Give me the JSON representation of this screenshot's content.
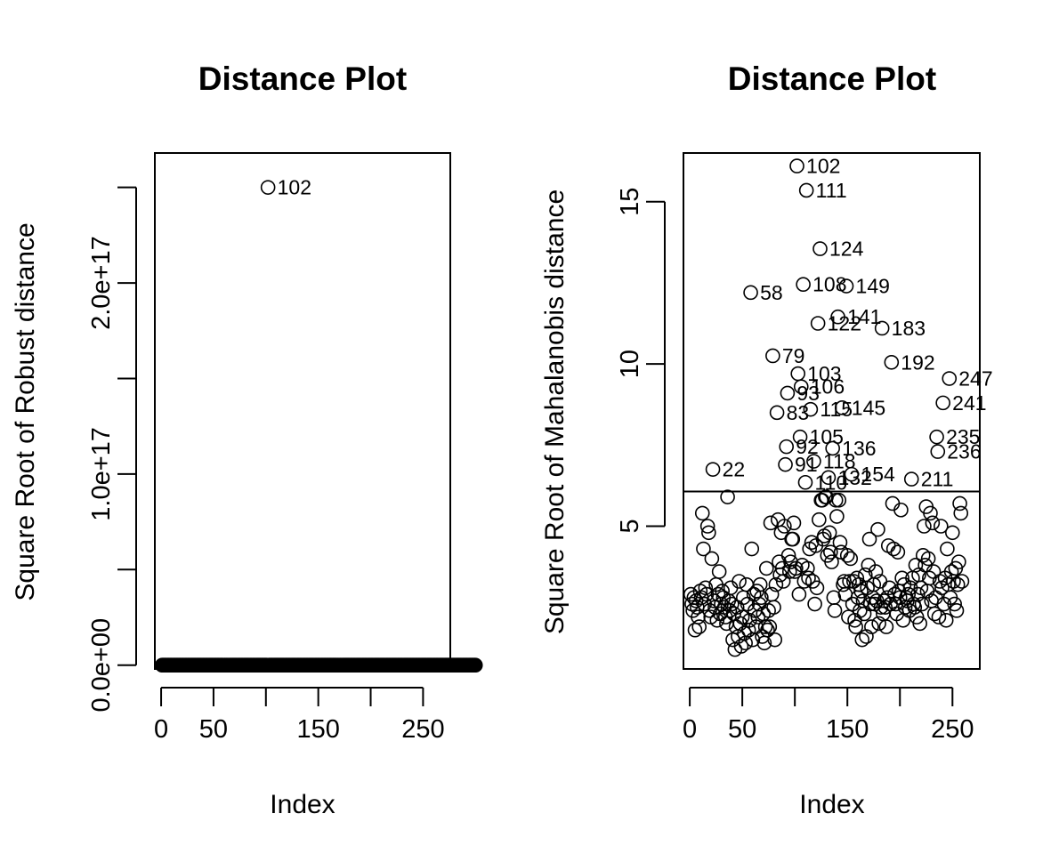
{
  "chart_data": [
    {
      "type": "scatter",
      "title": "Distance Plot",
      "xlabel": "Index",
      "ylabel": "Square Root of Robust distance",
      "xlim": [
        -6,
        276
      ],
      "ylim": [
        -2000000000000000.0,
        2.68e+17
      ],
      "x_ticks": [
        0,
        50,
        100,
        150,
        200,
        250
      ],
      "x_tick_labels": [
        "0",
        "50",
        "",
        "150",
        "",
        "250"
      ],
      "y_ticks": [
        0,
        5e+16,
        1e+17,
        1.5e+17,
        2e+17,
        2.5e+17
      ],
      "y_tick_labels": [
        "0.0e+00",
        "",
        "1.0e+17",
        "",
        "2.0e+17",
        ""
      ],
      "grid": false,
      "outlier_labels": [
        {
          "x": 102,
          "y": 2.5e+17,
          "label": "102"
        }
      ],
      "note": "all points except 102 lie at approximately 0, x from 1 to 300"
    },
    {
      "type": "scatter",
      "title": "Distance Plot",
      "xlabel": "Index",
      "ylabel": "Square Root of Mahalanobis distance",
      "xlim": [
        -6,
        276
      ],
      "ylim": [
        0.6,
        16.5
      ],
      "x_ticks": [
        0,
        50,
        100,
        150,
        200,
        250
      ],
      "x_tick_labels": [
        "0",
        "50",
        "",
        "150",
        "",
        "250"
      ],
      "y_ticks": [
        5,
        10,
        15
      ],
      "y_tick_labels": [
        "5",
        "10",
        "15"
      ],
      "cutoff": 6.07,
      "grid": false,
      "labeled_points": [
        {
          "x": 102,
          "y": 16.1,
          "label": "102"
        },
        {
          "x": 111,
          "y": 15.35,
          "label": "111"
        },
        {
          "x": 124,
          "y": 13.55,
          "label": "124"
        },
        {
          "x": 108,
          "y": 12.45,
          "label": "108"
        },
        {
          "x": 149,
          "y": 12.4,
          "label": "149"
        },
        {
          "x": 58,
          "y": 12.2,
          "label": "58"
        },
        {
          "x": 141,
          "y": 11.45,
          "label": "141"
        },
        {
          "x": 122,
          "y": 11.25,
          "label": "122"
        },
        {
          "x": 183,
          "y": 11.1,
          "label": "183"
        },
        {
          "x": 79,
          "y": 10.25,
          "label": "79"
        },
        {
          "x": 192,
          "y": 10.05,
          "label": "192"
        },
        {
          "x": 103,
          "y": 9.7,
          "label": "103"
        },
        {
          "x": 247,
          "y": 9.55,
          "label": "247"
        },
        {
          "x": 106,
          "y": 9.3,
          "label": "106"
        },
        {
          "x": 93,
          "y": 9.1,
          "label": "93"
        },
        {
          "x": 241,
          "y": 8.8,
          "label": "241"
        },
        {
          "x": 145,
          "y": 8.65,
          "label": "145"
        },
        {
          "x": 115,
          "y": 8.6,
          "label": "115"
        },
        {
          "x": 83,
          "y": 8.5,
          "label": "83"
        },
        {
          "x": 235,
          "y": 7.75,
          "label": "235"
        },
        {
          "x": 105,
          "y": 7.75,
          "label": "105"
        },
        {
          "x": 92,
          "y": 7.45,
          "label": "92"
        },
        {
          "x": 136,
          "y": 7.4,
          "label": "136"
        },
        {
          "x": 236,
          "y": 7.3,
          "label": "236"
        },
        {
          "x": 118,
          "y": 7.0,
          "label": "118"
        },
        {
          "x": 91,
          "y": 6.9,
          "label": "91"
        },
        {
          "x": 22,
          "y": 6.75,
          "label": "22"
        },
        {
          "x": 154,
          "y": 6.6,
          "label": "154"
        },
        {
          "x": 132,
          "y": 6.5,
          "label": "132"
        },
        {
          "x": 211,
          "y": 6.45,
          "label": "211"
        },
        {
          "x": 110,
          "y": 6.35,
          "label": "110"
        }
      ],
      "points": [
        [
          1,
          2.9
        ],
        [
          2,
          2.6
        ],
        [
          3,
          2.4
        ],
        [
          4,
          2.8
        ],
        [
          5,
          1.8
        ],
        [
          6,
          2.7
        ],
        [
          7,
          2.5
        ],
        [
          8,
          2.2
        ],
        [
          9,
          1.9
        ],
        [
          10,
          3.0
        ],
        [
          11,
          2.8
        ],
        [
          12,
          5.4
        ],
        [
          13,
          4.3
        ],
        [
          14,
          2.6
        ],
        [
          15,
          3.1
        ],
        [
          16,
          2.9
        ],
        [
          17,
          5.0
        ],
        [
          18,
          4.8
        ],
        [
          19,
          2.4
        ],
        [
          20,
          2.2
        ],
        [
          21,
          4.0
        ],
        [
          23,
          2.7
        ],
        [
          24,
          2.5
        ],
        [
          25,
          3.2
        ],
        [
          26,
          2.1
        ],
        [
          27,
          2.9
        ],
        [
          28,
          3.6
        ],
        [
          29,
          2.3
        ],
        [
          30,
          2.6
        ],
        [
          31,
          3.0
        ],
        [
          32,
          2.8
        ],
        [
          33,
          2.5
        ],
        [
          34,
          2.2
        ],
        [
          35,
          2.0
        ],
        [
          36,
          5.9
        ],
        [
          37,
          2.7
        ],
        [
          38,
          2.4
        ],
        [
          39,
          3.1
        ],
        [
          40,
          2.6
        ],
        [
          41,
          1.5
        ],
        [
          42,
          2.3
        ],
        [
          43,
          1.2
        ],
        [
          44,
          1.9
        ],
        [
          45,
          2.5
        ],
        [
          46,
          1.6
        ],
        [
          47,
          3.3
        ],
        [
          48,
          2.0
        ],
        [
          49,
          1.3
        ],
        [
          50,
          2.2
        ],
        [
          51,
          2.8
        ],
        [
          52,
          1.7
        ],
        [
          53,
          1.4
        ],
        [
          54,
          3.2
        ],
        [
          55,
          2.6
        ],
        [
          56,
          1.8
        ],
        [
          57,
          2.1
        ],
        [
          59,
          4.3
        ],
        [
          60,
          1.5
        ],
        [
          61,
          2.9
        ],
        [
          62,
          2.4
        ],
        [
          63,
          1.9
        ],
        [
          64,
          3.0
        ],
        [
          65,
          2.2
        ],
        [
          66,
          2.6
        ],
        [
          67,
          3.2
        ],
        [
          68,
          2.8
        ],
        [
          69,
          1.6
        ],
        [
          70,
          2.3
        ],
        [
          71,
          1.4
        ],
        [
          72,
          1.9
        ],
        [
          73,
          3.7
        ],
        [
          74,
          1.8
        ],
        [
          75,
          2.4
        ],
        [
          76,
          1.9
        ],
        [
          77,
          5.1
        ],
        [
          78,
          2.9
        ],
        [
          80,
          2.5
        ],
        [
          81,
          1.5
        ],
        [
          82,
          3.2
        ],
        [
          84,
          5.2
        ],
        [
          85,
          3.9
        ],
        [
          86,
          3.5
        ],
        [
          87,
          4.8
        ],
        [
          88,
          3.7
        ],
        [
          89,
          3.3
        ],
        [
          90,
          5.0
        ],
        [
          94,
          4.1
        ],
        [
          95,
          3.6
        ],
        [
          96,
          3.9
        ],
        [
          97,
          4.6
        ],
        [
          98,
          4.6
        ],
        [
          99,
          5.1
        ],
        [
          100,
          3.6
        ],
        [
          101,
          3.7
        ],
        [
          104,
          2.9
        ],
        [
          107,
          3.8
        ],
        [
          109,
          3.3
        ],
        [
          112,
          3.7
        ],
        [
          113,
          3.4
        ],
        [
          114,
          4.3
        ],
        [
          116,
          4.5
        ],
        [
          117,
          3.3
        ],
        [
          119,
          2.6
        ],
        [
          120,
          4.4
        ],
        [
          121,
          3.1
        ],
        [
          123,
          5.2
        ],
        [
          125,
          5.8
        ],
        [
          126,
          5.8
        ],
        [
          127,
          4.6
        ],
        [
          128,
          4.7
        ],
        [
          129,
          5.9
        ],
        [
          130,
          5.9
        ],
        [
          131,
          4.1
        ],
        [
          133,
          4.8
        ],
        [
          134,
          4.2
        ],
        [
          135,
          3.9
        ],
        [
          137,
          2.8
        ],
        [
          138,
          2.4
        ],
        [
          139,
          5.8
        ],
        [
          140,
          5.3
        ],
        [
          142,
          5.8
        ],
        [
          143,
          4.5
        ],
        [
          144,
          4.2
        ],
        [
          146,
          3.2
        ],
        [
          147,
          3.3
        ],
        [
          148,
          2.9
        ],
        [
          150,
          4.1
        ],
        [
          151,
          2.2
        ],
        [
          152,
          3.3
        ],
        [
          153,
          4.0
        ],
        [
          155,
          2.6
        ],
        [
          156,
          3.3
        ],
        [
          157,
          2.1
        ],
        [
          158,
          1.9
        ],
        [
          159,
          3.4
        ],
        [
          160,
          2.8
        ],
        [
          161,
          3.2
        ],
        [
          162,
          2.4
        ],
        [
          163,
          3.0
        ],
        [
          164,
          1.5
        ],
        [
          165,
          2.7
        ],
        [
          166,
          2.3
        ],
        [
          167,
          3.5
        ],
        [
          168,
          1.6
        ],
        [
          169,
          3.1
        ],
        [
          170,
          3.8
        ],
        [
          171,
          4.6
        ],
        [
          172,
          2.6
        ],
        [
          173,
          1.9
        ],
        [
          174,
          2.8
        ],
        [
          175,
          3.2
        ],
        [
          176,
          2.6
        ],
        [
          177,
          3.6
        ],
        [
          178,
          2.7
        ],
        [
          179,
          4.9
        ],
        [
          180,
          2.0
        ],
        [
          181,
          3.3
        ],
        [
          182,
          2.5
        ],
        [
          184,
          2.3
        ],
        [
          185,
          2.7
        ],
        [
          186,
          2.5
        ],
        [
          187,
          1.9
        ],
        [
          188,
          2.8
        ],
        [
          189,
          4.4
        ],
        [
          190,
          3.1
        ],
        [
          191,
          2.6
        ],
        [
          193,
          5.7
        ],
        [
          194,
          4.3
        ],
        [
          195,
          2.9
        ],
        [
          196,
          2.6
        ],
        [
          197,
          2.3
        ],
        [
          198,
          4.2
        ],
        [
          199,
          3.0
        ],
        [
          200,
          2.8
        ],
        [
          201,
          5.5
        ],
        [
          202,
          3.4
        ],
        [
          203,
          2.1
        ],
        [
          204,
          3.2
        ],
        [
          205,
          2.5
        ],
        [
          206,
          2.8
        ],
        [
          207,
          2.7
        ],
        [
          208,
          2.9
        ],
        [
          209,
          2.4
        ],
        [
          210,
          3.1
        ],
        [
          212,
          3.4
        ],
        [
          213,
          2.6
        ],
        [
          214,
          2.5
        ],
        [
          215,
          3.8
        ],
        [
          216,
          2.2
        ],
        [
          217,
          2.9
        ],
        [
          218,
          3.5
        ],
        [
          219,
          2.0
        ],
        [
          220,
          3.1
        ],
        [
          221,
          2.6
        ],
        [
          222,
          4.1
        ],
        [
          223,
          5.0
        ],
        [
          224,
          3.8
        ],
        [
          225,
          5.6
        ],
        [
          226,
          3.0
        ],
        [
          227,
          4.0
        ],
        [
          228,
          3.4
        ],
        [
          229,
          5.4
        ],
        [
          230,
          2.7
        ],
        [
          231,
          5.1
        ],
        [
          232,
          3.6
        ],
        [
          233,
          2.3
        ],
        [
          234,
          2.8
        ],
        [
          237,
          2.2
        ],
        [
          238,
          3.3
        ],
        [
          239,
          5.0
        ],
        [
          240,
          3.1
        ],
        [
          242,
          2.6
        ],
        [
          243,
          3.4
        ],
        [
          244,
          2.1
        ],
        [
          245,
          4.3
        ],
        [
          246,
          3.2
        ],
        [
          248,
          2.8
        ],
        [
          249,
          3.6
        ],
        [
          250,
          4.8
        ],
        [
          251,
          3.3
        ],
        [
          252,
          2.6
        ],
        [
          253,
          3.7
        ],
        [
          254,
          2.4
        ],
        [
          255,
          3.2
        ],
        [
          256,
          3.9
        ],
        [
          257,
          5.7
        ],
        [
          258,
          5.4
        ],
        [
          259,
          3.3
        ]
      ]
    }
  ]
}
